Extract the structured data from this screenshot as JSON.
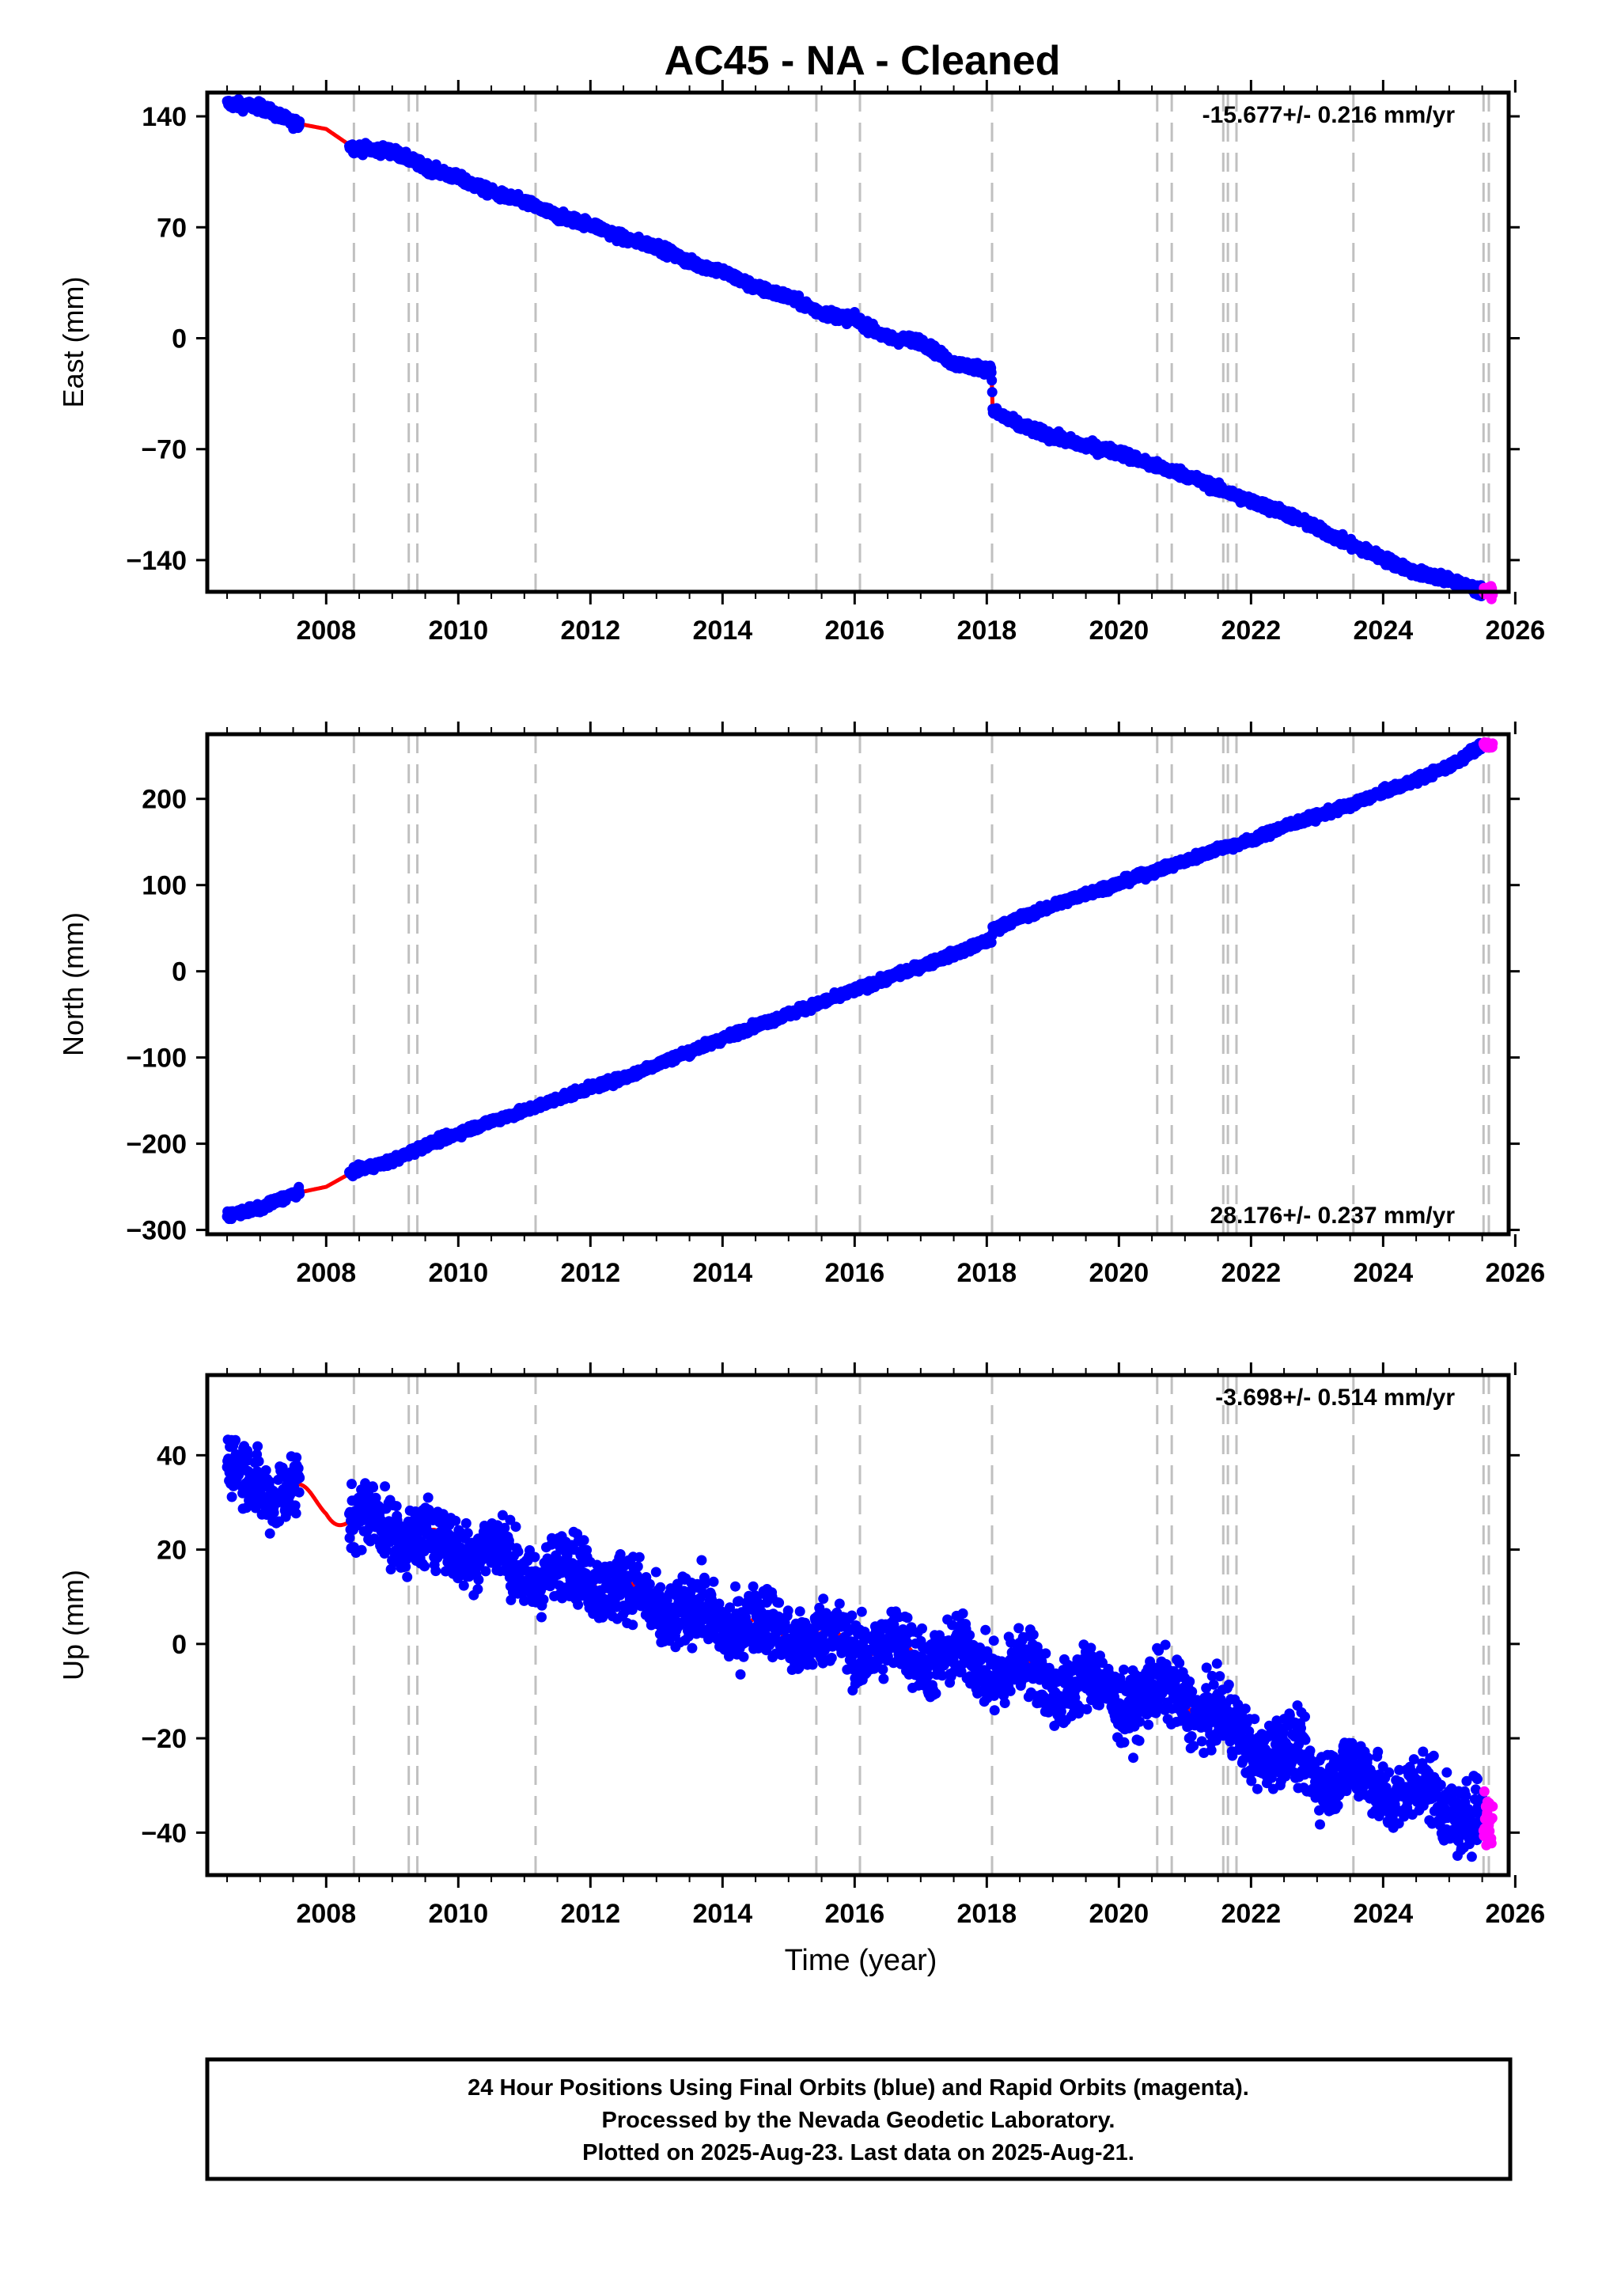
{
  "title": "AC45  - NA - Cleaned",
  "colors": {
    "final_orbits": "#0000ff",
    "rapid_orbits": "#ff00ff",
    "model": "#ff0000",
    "event_lines": "#c0c0c0"
  },
  "x_ticks": [
    "2008",
    "2010",
    "2012",
    "2014",
    "2016",
    "2018",
    "2020",
    "2022",
    "2024",
    "2026"
  ],
  "xlabel": "Time (year)",
  "event_lines": [
    2008.42,
    2009.25,
    2009.38,
    2011.17,
    2015.42,
    2016.08,
    2018.08,
    2020.58,
    2020.8,
    2021.58,
    2021.65,
    2021.78,
    2023.55,
    2025.52,
    2025.6
  ],
  "chart_data": [
    {
      "type": "scatter",
      "ylabel": "East (mm)",
      "xlim": [
        2006.2,
        2025.9
      ],
      "ylim": [
        -160,
        155
      ],
      "y_ticks": [
        140,
        70,
        0,
        -70,
        -140
      ],
      "rate_label": "-15.677+/- 0.216 mm/yr",
      "rate_position": "top-right",
      "series": [
        {
          "x": [
            2006.5,
            2007.0,
            2007.5,
            2008.0,
            2008.42,
            2009.0,
            2009.5,
            2010.0,
            2010.5,
            2011.0,
            2011.5,
            2012.0,
            2012.5,
            2013.0,
            2013.5,
            2014.0,
            2014.5,
            2015.0,
            2015.5,
            2016.0,
            2016.5,
            2017.0,
            2017.5,
            2018.07,
            2018.09,
            2018.5,
            2019.0,
            2019.5,
            2020.0,
            2020.5,
            2021.0,
            2021.5,
            2022.0,
            2022.5,
            2023.0,
            2023.5,
            2024.0,
            2024.5,
            2025.0,
            2025.5
          ],
          "y": [
            148,
            146,
            136,
            132,
            120,
            118,
            108,
            101,
            92,
            86,
            77,
            72,
            63,
            58,
            48,
            42,
            32,
            26,
            16,
            12,
            0,
            -2,
            -16,
            -20,
            -46,
            -55,
            -62,
            -68,
            -72,
            -80,
            -86,
            -95,
            -103,
            -110,
            -120,
            -130,
            -139,
            -148,
            -152,
            -160
          ]
        }
      ]
    },
    {
      "type": "scatter",
      "ylabel": "North (mm)",
      "xlim": [
        2006.2,
        2025.9
      ],
      "ylim": [
        -305,
        275
      ],
      "y_ticks": [
        200,
        100,
        0,
        -100,
        -200,
        -300
      ],
      "rate_label": "28.176+/- 0.237 mm/yr",
      "rate_position": "bottom-right",
      "series": [
        {
          "x": [
            2006.5,
            2007.0,
            2007.5,
            2008.0,
            2008.42,
            2009.0,
            2009.5,
            2010.0,
            2010.5,
            2011.0,
            2011.5,
            2012.0,
            2012.5,
            2013.0,
            2013.5,
            2014.0,
            2014.5,
            2015.0,
            2015.5,
            2016.0,
            2016.5,
            2017.0,
            2017.5,
            2018.07,
            2018.09,
            2018.5,
            2019.0,
            2019.5,
            2020.0,
            2020.5,
            2021.0,
            2021.5,
            2022.0,
            2022.5,
            2023.0,
            2023.5,
            2024.0,
            2024.5,
            2025.0,
            2025.5
          ],
          "y": [
            -283,
            -275,
            -258,
            -250,
            -232,
            -220,
            -202,
            -188,
            -174,
            -162,
            -148,
            -135,
            -124,
            -108,
            -93,
            -78,
            -63,
            -50,
            -36,
            -22,
            -8,
            6,
            20,
            37,
            48,
            62,
            76,
            90,
            102,
            115,
            128,
            142,
            152,
            168,
            180,
            193,
            208,
            222,
            238,
            262
          ]
        }
      ]
    },
    {
      "type": "scatter",
      "ylabel": "Up (mm)",
      "xlim": [
        2006.2,
        2025.9
      ],
      "ylim": [
        -49,
        57
      ],
      "y_ticks": [
        40,
        20,
        0,
        -20,
        -40
      ],
      "rate_label": "-3.698+/- 0.514 mm/yr",
      "rate_position": "top-right",
      "series": [
        {
          "x": [
            2006.5,
            2007.0,
            2007.5,
            2008.0,
            2008.42,
            2009.0,
            2009.5,
            2010.0,
            2010.5,
            2011.0,
            2011.5,
            2012.0,
            2012.5,
            2013.0,
            2013.5,
            2014.0,
            2014.5,
            2015.0,
            2015.5,
            2016.0,
            2016.5,
            2017.0,
            2017.5,
            2018.0,
            2018.5,
            2019.0,
            2019.5,
            2020.0,
            2020.5,
            2021.0,
            2021.5,
            2022.0,
            2022.5,
            2023.0,
            2023.5,
            2024.0,
            2024.5,
            2025.0,
            2025.5
          ],
          "y": [
            36,
            35,
            31,
            30,
            25,
            26,
            21,
            22,
            19,
            16,
            14,
            16,
            10,
            9,
            5,
            6,
            3,
            3,
            0,
            1,
            -2,
            -1,
            -4,
            -4,
            -6,
            -8,
            -9,
            -11,
            -12,
            -10,
            -17,
            -20,
            -24,
            -26,
            -28,
            -30,
            -32,
            -34,
            -37
          ]
        }
      ]
    }
  ],
  "footer": {
    "line1": "24 Hour Positions Using Final Orbits (blue) and Rapid Orbits (magenta).",
    "line2": "Processed by the Nevada Geodetic Laboratory.",
    "line3": "Plotted on 2025-Aug-23. Last data on 2025-Aug-21."
  }
}
